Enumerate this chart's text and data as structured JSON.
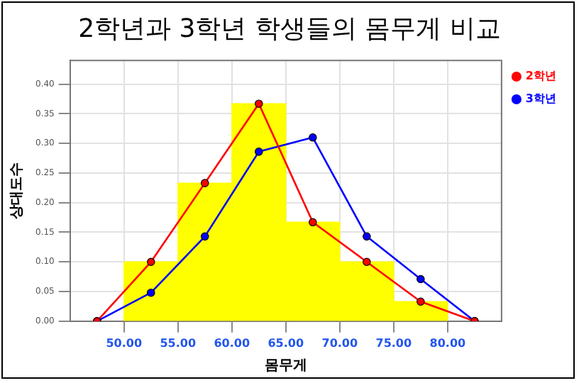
{
  "chart_data": {
    "type": "histogram",
    "title": "2학년과 3학년 학생들의 몸무게 비교",
    "xlabel": "몸무게",
    "ylabel": "상대도수",
    "bins": [
      50,
      55,
      60,
      65,
      70,
      75,
      80
    ],
    "values": [
      0.1,
      0.233,
      0.367,
      0.167,
      0.1,
      0.033
    ],
    "color": "#ffff00",
    "series": [
      {
        "name": "2학년",
        "type": "line",
        "color": "#ff0000",
        "x": [
          47.5,
          52.5,
          57.5,
          62.5,
          67.5,
          72.5,
          77.5,
          82.5
        ],
        "values": [
          0,
          0.1,
          0.233,
          0.367,
          0.167,
          0.1,
          0.033,
          0
        ]
      },
      {
        "name": "3학년",
        "type": "line",
        "color": "#0000ff",
        "x": [
          47.5,
          52.5,
          57.5,
          62.5,
          67.5,
          72.5,
          77.5,
          82.5
        ],
        "values": [
          0,
          0.048,
          0.143,
          0.286,
          0.31,
          0.143,
          0.071,
          0
        ]
      }
    ],
    "xlim": [
      45,
      85
    ],
    "ylim": [
      0,
      0.44
    ],
    "xticks": [
      {
        "value": 50,
        "label": "50.00"
      },
      {
        "value": 55,
        "label": "55.00"
      },
      {
        "value": 60,
        "label": "60.00"
      },
      {
        "value": 65,
        "label": "65.00"
      },
      {
        "value": 70,
        "label": "70.00"
      },
      {
        "value": 75,
        "label": "75.00"
      },
      {
        "value": 80,
        "label": "80.00"
      }
    ],
    "yticks": [
      {
        "value": 0,
        "label": "0.00"
      },
      {
        "value": 0.05,
        "label": "0.05"
      },
      {
        "value": 0.1,
        "label": "0.10"
      },
      {
        "value": 0.15,
        "label": "0.15"
      },
      {
        "value": 0.2,
        "label": "0.20"
      },
      {
        "value": 0.25,
        "label": "0.25"
      },
      {
        "value": 0.3,
        "label": "0.30"
      },
      {
        "value": 0.35,
        "label": "0.35"
      },
      {
        "value": 0.4,
        "label": "0.40"
      }
    ],
    "grid": true,
    "legend": "right",
    "marker": "circle"
  }
}
